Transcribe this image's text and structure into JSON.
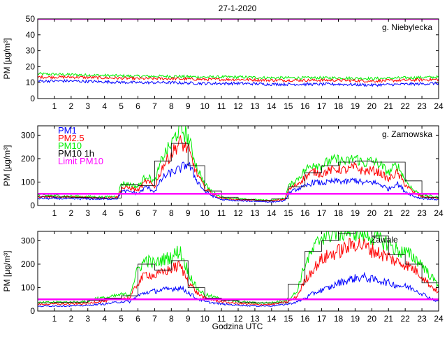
{
  "figure": {
    "title": "27-1-2020",
    "xlabel": "Godzina UTC",
    "colors": {
      "pm1": "#0000ff",
      "pm25": "#ff0000",
      "pm10": "#00ee00",
      "pm10_1h": "#000000",
      "limit": "#ff00ff",
      "axis": "#000000",
      "background": "#ffffff"
    }
  },
  "chart_data": [
    {
      "type": "line",
      "station": "g. Niebylecka",
      "ylabel": "PM [µg/m³]",
      "xlim": [
        0,
        24
      ],
      "ylim": [
        0,
        50
      ],
      "yticks": [
        0,
        10,
        20,
        30,
        40,
        50
      ],
      "xticks": [
        1,
        2,
        3,
        4,
        5,
        6,
        7,
        8,
        9,
        10,
        11,
        12,
        13,
        14,
        15,
        16,
        17,
        18,
        19,
        20,
        21,
        22,
        23,
        24
      ],
      "limit_pm10": 50,
      "legend": null,
      "series": [
        {
          "name": "PM1",
          "key": "pm1",
          "x": [
            0,
            2,
            4,
            6,
            8,
            10,
            12,
            14,
            16,
            18,
            20,
            22,
            24
          ],
          "values": [
            11,
            11,
            10.5,
            10,
            10,
            9.5,
            9.5,
            9,
            9,
            9,
            8.5,
            9,
            9.5
          ]
        },
        {
          "name": "PM2.5",
          "key": "pm25",
          "x": [
            0,
            2,
            4,
            6,
            8,
            10,
            12,
            14,
            16,
            18,
            20,
            22,
            24
          ],
          "values": [
            13.5,
            13.5,
            13,
            12.5,
            12.5,
            12,
            12,
            11.5,
            11.5,
            11.5,
            11,
            11.5,
            12
          ]
        },
        {
          "name": "PM10",
          "key": "pm10",
          "x": [
            0,
            2,
            4,
            6,
            8,
            10,
            12,
            14,
            16,
            18,
            20,
            22,
            24
          ],
          "values": [
            15.5,
            15,
            14.5,
            14,
            14,
            13.5,
            13.5,
            13,
            13,
            13,
            12.5,
            13,
            13.5
          ]
        }
      ],
      "hourly_pm10": []
    },
    {
      "type": "line",
      "station": "g. Zarnowska",
      "ylabel": "PM [µg/m³]",
      "xlim": [
        0,
        24
      ],
      "ylim": [
        0,
        340
      ],
      "yticks": [
        0,
        100,
        200,
        300
      ],
      "xticks": [
        1,
        2,
        3,
        4,
        5,
        6,
        7,
        8,
        9,
        10,
        11,
        12,
        13,
        14,
        15,
        16,
        17,
        18,
        19,
        20,
        21,
        22,
        23,
        24
      ],
      "limit_pm10": 50,
      "legend": [
        "PM1",
        "PM2.5",
        "PM10",
        "PM10 1h",
        "Limit PM10"
      ],
      "series": [
        {
          "name": "PM1",
          "key": "pm1",
          "x": [
            0,
            1,
            2,
            3,
            4,
            4.8,
            5,
            5.5,
            6,
            6.5,
            7,
            7.5,
            8,
            8.5,
            9,
            9.5,
            10,
            10.5,
            11,
            12,
            13,
            14,
            14.8,
            15,
            15.5,
            16,
            16.5,
            17,
            17.5,
            18,
            18.5,
            19,
            19.5,
            20,
            20.5,
            21,
            21.5,
            22,
            22.5,
            23,
            24
          ],
          "values": [
            30,
            30,
            28,
            28,
            27,
            30,
            60,
            60,
            50,
            80,
            60,
            120,
            140,
            155,
            180,
            110,
            60,
            40,
            25,
            20,
            18,
            15,
            20,
            50,
            70,
            80,
            100,
            95,
            100,
            105,
            100,
            110,
            95,
            100,
            90,
            70,
            95,
            60,
            40,
            30,
            25
          ]
        },
        {
          "name": "PM2.5",
          "key": "pm25",
          "x": [
            0,
            1,
            2,
            3,
            4,
            4.8,
            5,
            5.5,
            6,
            6.5,
            7,
            7.5,
            8,
            8.5,
            9,
            9.5,
            10,
            10.5,
            11,
            12,
            13,
            14,
            14.8,
            15,
            15.5,
            16,
            16.5,
            17,
            17.5,
            18,
            18.5,
            19,
            19.5,
            20,
            20.5,
            21,
            21.5,
            22,
            22.5,
            23,
            24
          ],
          "values": [
            38,
            36,
            35,
            34,
            32,
            36,
            75,
            75,
            65,
            105,
            80,
            170,
            220,
            270,
            240,
            140,
            75,
            48,
            30,
            24,
            22,
            20,
            26,
            65,
            90,
            120,
            145,
            135,
            150,
            155,
            150,
            165,
            145,
            150,
            140,
            110,
            140,
            90,
            55,
            38,
            30
          ]
        },
        {
          "name": "PM10",
          "key": "pm10",
          "x": [
            0,
            1,
            2,
            3,
            4,
            4.8,
            5,
            5.5,
            6,
            6.5,
            7,
            7.5,
            8,
            8.5,
            9,
            9.5,
            10,
            10.5,
            11,
            12,
            13,
            14,
            14.8,
            15,
            15.5,
            16,
            16.5,
            17,
            17.5,
            18,
            18.5,
            19,
            19.5,
            20,
            20.5,
            21,
            21.5,
            22,
            22.5,
            23,
            24
          ],
          "values": [
            45,
            42,
            40,
            38,
            36,
            40,
            95,
            90,
            80,
            130,
            100,
            210,
            260,
            335,
            290,
            170,
            90,
            55,
            35,
            28,
            25,
            22,
            30,
            80,
            110,
            150,
            180,
            170,
            190,
            195,
            185,
            205,
            180,
            190,
            175,
            140,
            175,
            110,
            65,
            45,
            35
          ]
        }
      ],
      "hourly_pm10": [
        38,
        36,
        34,
        33,
        32,
        90,
        85,
        190,
        265,
        170,
        62,
        35,
        26,
        22,
        28,
        80,
        140,
        170,
        185,
        190,
        185,
        185,
        105,
        35
      ]
    },
    {
      "type": "line",
      "station": "Zawale",
      "ylabel": "PM [µg/m³]",
      "xlim": [
        0,
        24
      ],
      "ylim": [
        0,
        340
      ],
      "yticks": [
        0,
        100,
        200,
        300
      ],
      "xticks": [
        1,
        2,
        3,
        4,
        5,
        6,
        7,
        8,
        9,
        10,
        11,
        12,
        13,
        14,
        15,
        16,
        17,
        18,
        19,
        20,
        21,
        22,
        23,
        24
      ],
      "limit_pm10": 50,
      "legend": null,
      "series": [
        {
          "name": "PM1",
          "key": "pm1",
          "x": [
            0,
            1,
            2,
            3,
            3.5,
            4,
            5,
            5.5,
            6,
            6.5,
            7,
            7.5,
            8,
            8.5,
            9,
            9.5,
            10,
            11,
            12,
            13,
            14,
            15,
            15.5,
            16,
            16.5,
            17,
            17.5,
            18,
            18.5,
            19,
            19.5,
            20,
            20.5,
            21,
            21.5,
            22,
            22.5,
            23,
            23.5,
            24
          ],
          "values": [
            20,
            22,
            22,
            24,
            28,
            30,
            40,
            40,
            65,
            80,
            85,
            90,
            95,
            100,
            80,
            55,
            40,
            30,
            25,
            22,
            22,
            30,
            38,
            55,
            75,
            90,
            100,
            120,
            130,
            140,
            145,
            135,
            130,
            120,
            110,
            105,
            95,
            75,
            55,
            40
          ]
        },
        {
          "name": "PM2.5",
          "key": "pm25",
          "x": [
            0,
            1,
            2,
            3,
            3.5,
            4,
            5,
            5.5,
            6,
            6.5,
            7,
            7.5,
            8,
            8.5,
            9,
            9.5,
            10,
            11,
            12,
            13,
            14,
            15,
            15.5,
            16,
            16.5,
            17,
            17.5,
            18,
            18.5,
            19,
            19.5,
            20,
            20.5,
            21,
            21.5,
            22,
            22.5,
            23,
            23.5,
            24
          ],
          "values": [
            28,
            30,
            30,
            32,
            40,
            42,
            55,
            55,
            120,
            160,
            150,
            165,
            180,
            195,
            130,
            80,
            55,
            40,
            32,
            28,
            28,
            40,
            60,
            130,
            180,
            220,
            240,
            255,
            270,
            290,
            280,
            260,
            245,
            230,
            210,
            200,
            180,
            150,
            110,
            80
          ]
        },
        {
          "name": "PM10",
          "key": "pm10",
          "x": [
            0,
            1,
            2,
            3,
            3.5,
            4,
            5,
            5.5,
            6,
            6.5,
            7,
            7.5,
            8,
            8.5,
            9,
            9.5,
            10,
            11,
            12,
            13,
            14,
            15,
            15.5,
            16,
            16.5,
            17,
            17.5,
            18,
            18.5,
            19,
            19.5,
            20,
            20.5,
            21,
            21.5,
            22,
            22.5,
            23,
            23.5,
            24
          ],
          "values": [
            35,
            38,
            38,
            40,
            55,
            55,
            70,
            70,
            180,
            220,
            200,
            220,
            230,
            260,
            170,
            100,
            70,
            50,
            40,
            35,
            35,
            50,
            80,
            200,
            260,
            320,
            330,
            335,
            340,
            340,
            330,
            320,
            300,
            290,
            260,
            250,
            230,
            200,
            150,
            110
          ]
        }
      ],
      "hourly_pm10": [
        35,
        37,
        38,
        45,
        55,
        65,
        200,
        175,
        215,
        100,
        55,
        45,
        38,
        35,
        35,
        115,
        255,
        300,
        330,
        340,
        320,
        240,
        200,
        120
      ]
    }
  ]
}
